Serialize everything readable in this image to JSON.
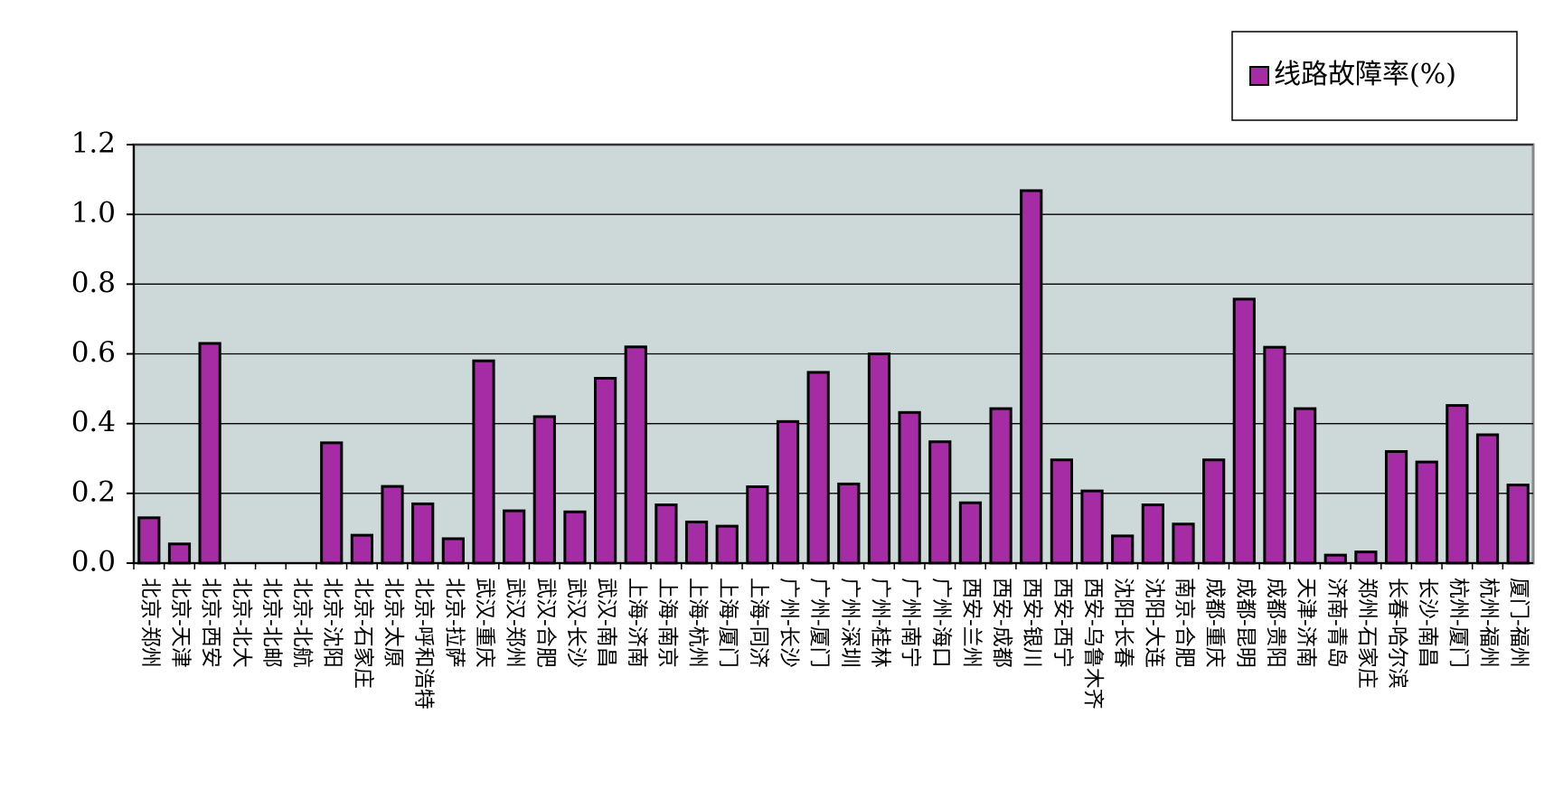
{
  "chart_data": {
    "type": "bar",
    "categories": [
      "北京-郑州",
      "北京-天津",
      "北京-西安",
      "北京-北大",
      "北京-北邮",
      "北京-北航",
      "北京-沈阳",
      "北京-石家庄",
      "北京-太原",
      "北京-呼和浩特",
      "北京-拉萨",
      "武汉-重庆",
      "武汉-郑州",
      "武汉-合肥",
      "武汉-长沙",
      "武汉-南昌",
      "上海-济南",
      "上海-南京",
      "上海-杭州",
      "上海-厦门",
      "上海-同济",
      "广州-长沙",
      "广州-厦门",
      "广州-深圳",
      "广州-桂林",
      "广州-南宁",
      "广州-海口",
      "西安-兰州",
      "西安-成都",
      "西安-银川",
      "西安-西宁",
      "西安-乌鲁木齐",
      "沈阳-长春",
      "沈阳-大连",
      "南京-合肥",
      "成都-重庆",
      "成都-昆明",
      "成都-贵阳",
      "天津-济南",
      "济南-青岛",
      "郑州-石家庄",
      "长春-哈尔滨",
      "长沙-南昌",
      "杭州-厦门",
      "杭州-福州",
      "厦门-福州"
    ],
    "series": [
      {
        "name": "线路故障率(%)",
        "color": "#a52ca5",
        "values": [
          0.13,
          0.055,
          0.63,
          0,
          0,
          0,
          0.345,
          0.08,
          0.22,
          0.17,
          0.07,
          0.58,
          0.15,
          0.42,
          0.147,
          0.53,
          0.62,
          0.167,
          0.118,
          0.106,
          0.219,
          0.406,
          0.547,
          0.227,
          0.6,
          0.432,
          0.348,
          0.173,
          0.443,
          1.068,
          0.296,
          0.207,
          0.078,
          0.167,
          0.112,
          0.296,
          0.757,
          0.619,
          0.443,
          0.023,
          0.032,
          0.32,
          0.29,
          0.452,
          0.368,
          0.224
        ]
      }
    ],
    "ylim": [
      0,
      1.2
    ],
    "yticks": [
      {
        "value": 0,
        "label": "0.0"
      },
      0.2,
      0.4,
      0.6,
      0.8,
      {
        "value": 1,
        "label": "1.0"
      },
      1.2
    ],
    "grid": true,
    "legend": "top-right",
    "plot_background": "#ccd9d8"
  }
}
